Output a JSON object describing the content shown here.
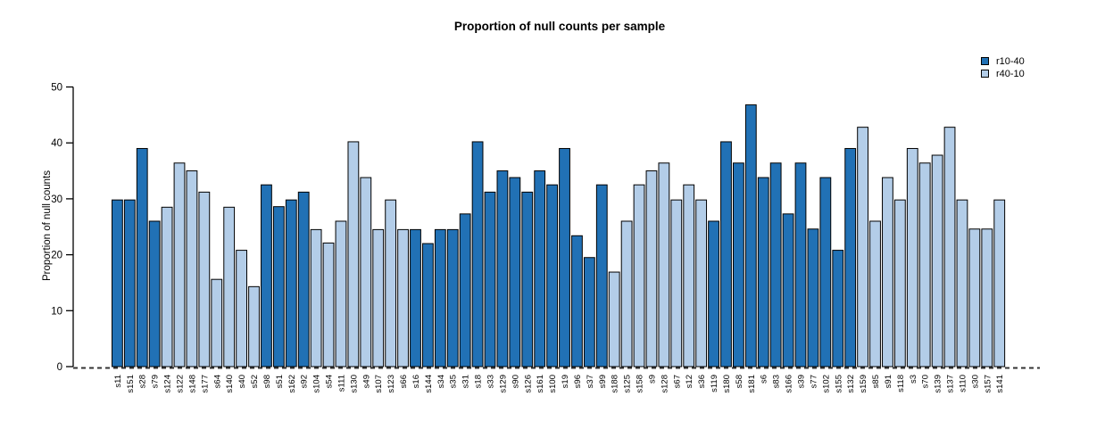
{
  "chart_data": {
    "type": "bar",
    "title": "Proportion of null counts per sample",
    "ylabel": "Proportion of null counts",
    "xlabel": "",
    "ylim": [
      0,
      50
    ],
    "yticks": [
      0,
      10,
      20,
      30,
      40,
      50
    ],
    "grid": false,
    "legend_position": "top-right",
    "zero_line_style": "dashed",
    "series": [
      {
        "name": "r10-40",
        "color": "#2171b5"
      },
      {
        "name": "r40-10",
        "color": "#b3cde8"
      }
    ],
    "samples": [
      {
        "label": "s11",
        "value": 29.8,
        "series": "r10-40"
      },
      {
        "label": "s151",
        "value": 29.8,
        "series": "r10-40"
      },
      {
        "label": "s28",
        "value": 39.0,
        "series": "r10-40"
      },
      {
        "label": "s79",
        "value": 26.0,
        "series": "r10-40"
      },
      {
        "label": "s124",
        "value": 28.5,
        "series": "r40-10"
      },
      {
        "label": "s122",
        "value": 36.4,
        "series": "r40-10"
      },
      {
        "label": "s148",
        "value": 35.0,
        "series": "r40-10"
      },
      {
        "label": "s177",
        "value": 31.2,
        "series": "r40-10"
      },
      {
        "label": "s64",
        "value": 15.6,
        "series": "r40-10"
      },
      {
        "label": "s140",
        "value": 28.5,
        "series": "r40-10"
      },
      {
        "label": "s40",
        "value": 20.8,
        "series": "r40-10"
      },
      {
        "label": "s52",
        "value": 14.3,
        "series": "r40-10"
      },
      {
        "label": "s98",
        "value": 32.5,
        "series": "r10-40"
      },
      {
        "label": "s51",
        "value": 28.6,
        "series": "r10-40"
      },
      {
        "label": "s162",
        "value": 29.8,
        "series": "r10-40"
      },
      {
        "label": "s92",
        "value": 31.2,
        "series": "r10-40"
      },
      {
        "label": "s104",
        "value": 24.5,
        "series": "r40-10"
      },
      {
        "label": "s54",
        "value": 22.1,
        "series": "r40-10"
      },
      {
        "label": "s111",
        "value": 26.0,
        "series": "r40-10"
      },
      {
        "label": "s130",
        "value": 40.2,
        "series": "r40-10"
      },
      {
        "label": "s49",
        "value": 33.8,
        "series": "r40-10"
      },
      {
        "label": "s107",
        "value": 24.5,
        "series": "r40-10"
      },
      {
        "label": "s123",
        "value": 29.8,
        "series": "r40-10"
      },
      {
        "label": "s66",
        "value": 24.5,
        "series": "r40-10"
      },
      {
        "label": "s16",
        "value": 24.5,
        "series": "r10-40"
      },
      {
        "label": "s144",
        "value": 22.0,
        "series": "r10-40"
      },
      {
        "label": "s34",
        "value": 24.5,
        "series": "r10-40"
      },
      {
        "label": "s35",
        "value": 24.5,
        "series": "r10-40"
      },
      {
        "label": "s31",
        "value": 27.3,
        "series": "r10-40"
      },
      {
        "label": "s18",
        "value": 40.2,
        "series": "r10-40"
      },
      {
        "label": "s33",
        "value": 31.2,
        "series": "r10-40"
      },
      {
        "label": "s129",
        "value": 35.0,
        "series": "r10-40"
      },
      {
        "label": "s90",
        "value": 33.8,
        "series": "r10-40"
      },
      {
        "label": "s126",
        "value": 31.2,
        "series": "r10-40"
      },
      {
        "label": "s161",
        "value": 35.0,
        "series": "r10-40"
      },
      {
        "label": "s100",
        "value": 32.5,
        "series": "r10-40"
      },
      {
        "label": "s19",
        "value": 39.0,
        "series": "r10-40"
      },
      {
        "label": "s96",
        "value": 23.4,
        "series": "r10-40"
      },
      {
        "label": "s37",
        "value": 19.5,
        "series": "r10-40"
      },
      {
        "label": "s99",
        "value": 32.5,
        "series": "r10-40"
      },
      {
        "label": "s188",
        "value": 16.9,
        "series": "r40-10"
      },
      {
        "label": "s125",
        "value": 26.0,
        "series": "r40-10"
      },
      {
        "label": "s158",
        "value": 32.5,
        "series": "r40-10"
      },
      {
        "label": "s9",
        "value": 35.0,
        "series": "r40-10"
      },
      {
        "label": "s128",
        "value": 36.4,
        "series": "r40-10"
      },
      {
        "label": "s67",
        "value": 29.8,
        "series": "r40-10"
      },
      {
        "label": "s12",
        "value": 32.5,
        "series": "r40-10"
      },
      {
        "label": "s36",
        "value": 29.8,
        "series": "r40-10"
      },
      {
        "label": "s119",
        "value": 26.0,
        "series": "r10-40"
      },
      {
        "label": "s180",
        "value": 40.2,
        "series": "r10-40"
      },
      {
        "label": "s58",
        "value": 36.4,
        "series": "r10-40"
      },
      {
        "label": "s181",
        "value": 46.8,
        "series": "r10-40"
      },
      {
        "label": "s6",
        "value": 33.8,
        "series": "r10-40"
      },
      {
        "label": "s83",
        "value": 36.4,
        "series": "r10-40"
      },
      {
        "label": "s166",
        "value": 27.3,
        "series": "r10-40"
      },
      {
        "label": "s39",
        "value": 36.4,
        "series": "r10-40"
      },
      {
        "label": "s77",
        "value": 24.6,
        "series": "r10-40"
      },
      {
        "label": "s102",
        "value": 33.8,
        "series": "r10-40"
      },
      {
        "label": "s155",
        "value": 20.8,
        "series": "r10-40"
      },
      {
        "label": "s132",
        "value": 39.0,
        "series": "r10-40"
      },
      {
        "label": "s159",
        "value": 42.8,
        "series": "r40-10"
      },
      {
        "label": "s85",
        "value": 26.0,
        "series": "r40-10"
      },
      {
        "label": "s91",
        "value": 33.8,
        "series": "r40-10"
      },
      {
        "label": "s118",
        "value": 29.8,
        "series": "r40-10"
      },
      {
        "label": "s3",
        "value": 39.0,
        "series": "r40-10"
      },
      {
        "label": "s70",
        "value": 36.4,
        "series": "r40-10"
      },
      {
        "label": "s139",
        "value": 37.8,
        "series": "r40-10"
      },
      {
        "label": "s137",
        "value": 42.8,
        "series": "r40-10"
      },
      {
        "label": "s110",
        "value": 29.8,
        "series": "r40-10"
      },
      {
        "label": "s30",
        "value": 24.6,
        "series": "r40-10"
      },
      {
        "label": "s157",
        "value": 24.6,
        "series": "r40-10"
      },
      {
        "label": "s141",
        "value": 29.8,
        "series": "r40-10"
      }
    ]
  }
}
